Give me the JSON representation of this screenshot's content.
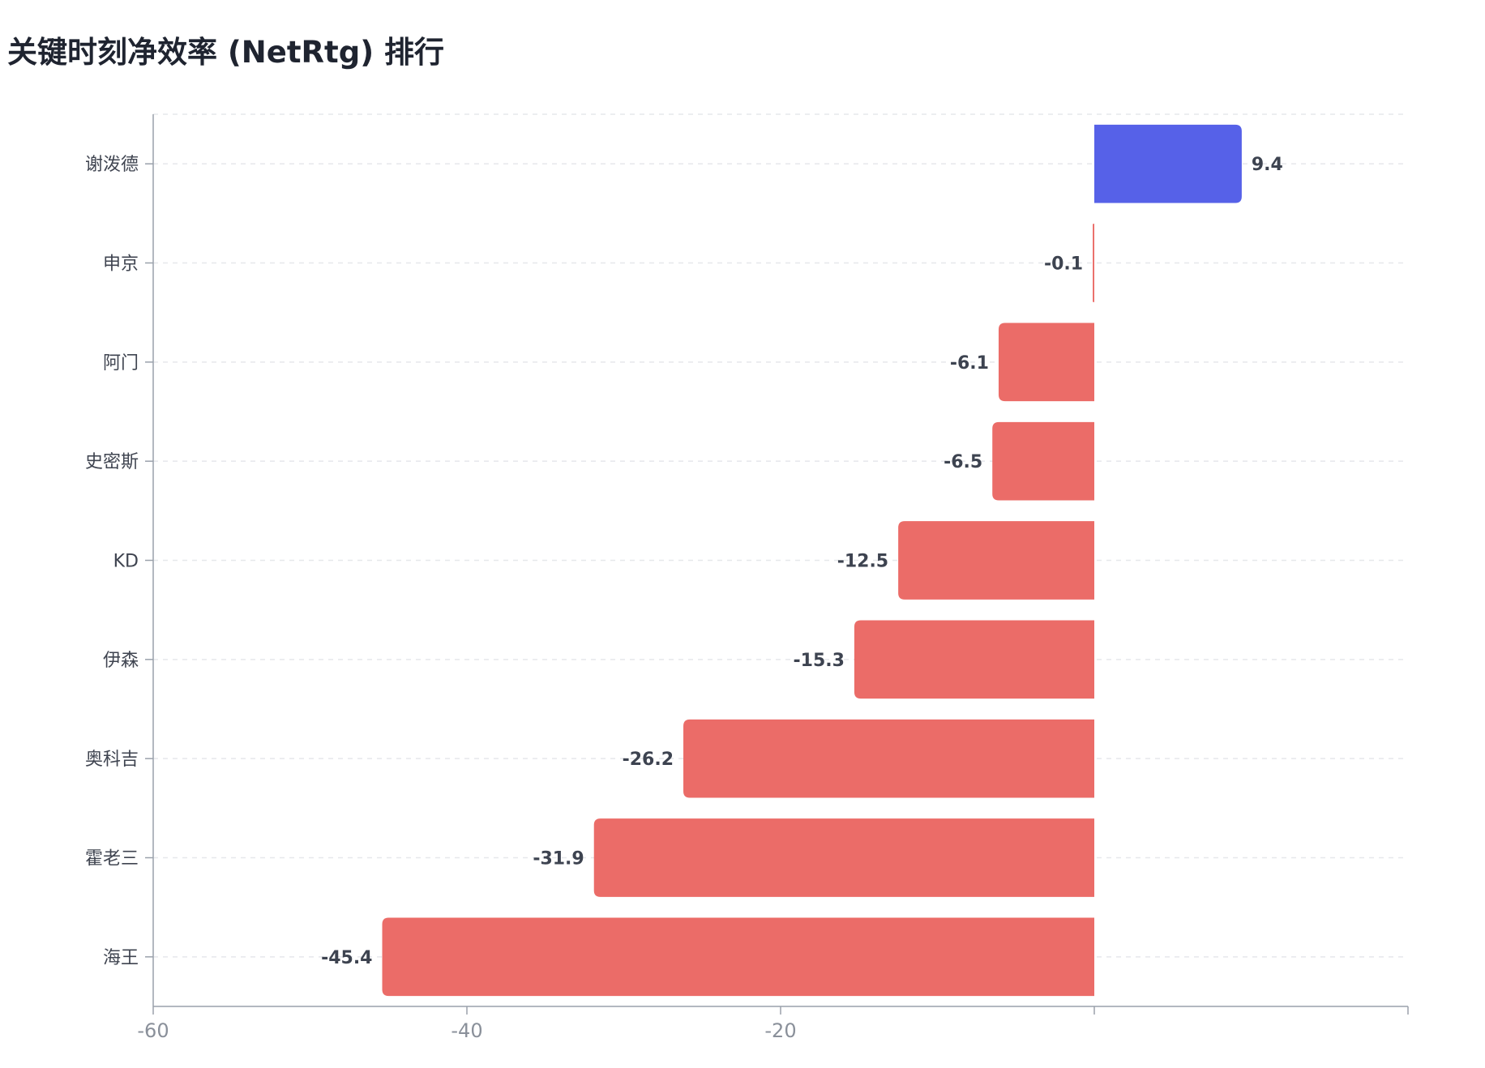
{
  "title": "关键时刻净效率 (NetRtg) 排行",
  "chart_data": {
    "type": "bar",
    "orientation": "horizontal",
    "title": "关键时刻净效率 (NetRtg) 排行",
    "xlabel": "",
    "ylabel": "",
    "categories": [
      "谢泼德",
      "申京",
      "阿门",
      "史密斯",
      "KD",
      "伊森",
      "奥科吉",
      "霍老三",
      "海王"
    ],
    "values": [
      9.4,
      -0.1,
      -6.1,
      -6.5,
      -12.5,
      -15.3,
      -26.2,
      -31.9,
      -45.4
    ],
    "value_labels": [
      "9.4",
      "-0.1",
      "-6.1",
      "-6.5",
      "-12.5",
      "-15.3",
      "-26.2",
      "-31.9",
      "-45.4"
    ],
    "xlim": [
      -60,
      20
    ],
    "x_ticks": [
      -60,
      -40,
      -20
    ],
    "x_tick_labels": [
      "-60",
      "-40",
      "-20"
    ],
    "grid": true,
    "colors": {
      "positive": "#5661e8",
      "negative": "#eb6c68",
      "axis": "#9aa1ab",
      "grid": "#e6e8eb"
    }
  }
}
